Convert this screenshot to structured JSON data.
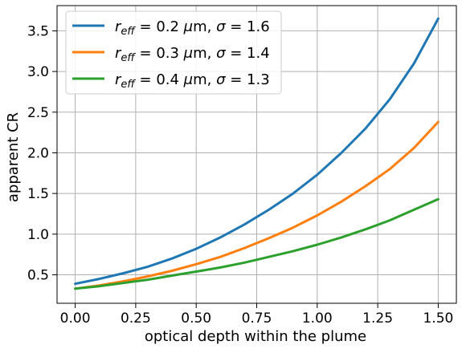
{
  "chart_data": {
    "type": "line",
    "xlabel": "optical depth within the plume",
    "ylabel": "apparent CR",
    "xlim": [
      -0.075,
      1.575
    ],
    "ylim": [
      0.15,
      3.81
    ],
    "xticks": [
      0.0,
      0.25,
      0.5,
      0.75,
      1.0,
      1.25,
      1.5
    ],
    "xtick_labels": [
      "0.00",
      "0.25",
      "0.50",
      "0.75",
      "1.00",
      "1.25",
      "1.50"
    ],
    "yticks": [
      0.5,
      1.0,
      1.5,
      2.0,
      2.5,
      3.0,
      3.5
    ],
    "ytick_labels": [
      "0.5",
      "1.0",
      "1.5",
      "2.0",
      "2.5",
      "3.0",
      "3.5"
    ],
    "grid": true,
    "legend_position": "top-left",
    "x": [
      0.0,
      0.1,
      0.2,
      0.3,
      0.4,
      0.5,
      0.6,
      0.7,
      0.8,
      0.9,
      1.0,
      1.1,
      1.2,
      1.3,
      1.4,
      1.5
    ],
    "series": [
      {
        "name": "r_eff = 0.2 μm, σ = 1.6",
        "color": "#1f77b4",
        "values": [
          0.39,
          0.45,
          0.52,
          0.6,
          0.7,
          0.82,
          0.96,
          1.12,
          1.3,
          1.5,
          1.73,
          2.0,
          2.3,
          2.66,
          3.1,
          3.65
        ]
      },
      {
        "name": "r_eff = 0.3 μm, σ = 1.4",
        "color": "#ff7f0e",
        "values": [
          0.33,
          0.37,
          0.42,
          0.48,
          0.55,
          0.63,
          0.72,
          0.83,
          0.95,
          1.08,
          1.23,
          1.4,
          1.59,
          1.8,
          2.06,
          2.38
        ]
      },
      {
        "name": "r_eff = 0.4 μm, σ = 1.3",
        "color": "#2ca02c",
        "values": [
          0.33,
          0.36,
          0.4,
          0.44,
          0.49,
          0.54,
          0.59,
          0.65,
          0.72,
          0.79,
          0.87,
          0.96,
          1.06,
          1.17,
          1.3,
          1.43
        ]
      }
    ]
  },
  "legend": [
    {
      "r": "r",
      "sub": "eff",
      "eq1": " = 0.2 ",
      "mu": "μ",
      "unit": "m, ",
      "sigma": "σ",
      "eq2": " = 1.6"
    },
    {
      "r": "r",
      "sub": "eff",
      "eq1": " = 0.3 ",
      "mu": "μ",
      "unit": "m, ",
      "sigma": "σ",
      "eq2": " = 1.4"
    },
    {
      "r": "r",
      "sub": "eff",
      "eq1": " = 0.4 ",
      "mu": "μ",
      "unit": "m, ",
      "sigma": "σ",
      "eq2": " = 1.3"
    }
  ]
}
